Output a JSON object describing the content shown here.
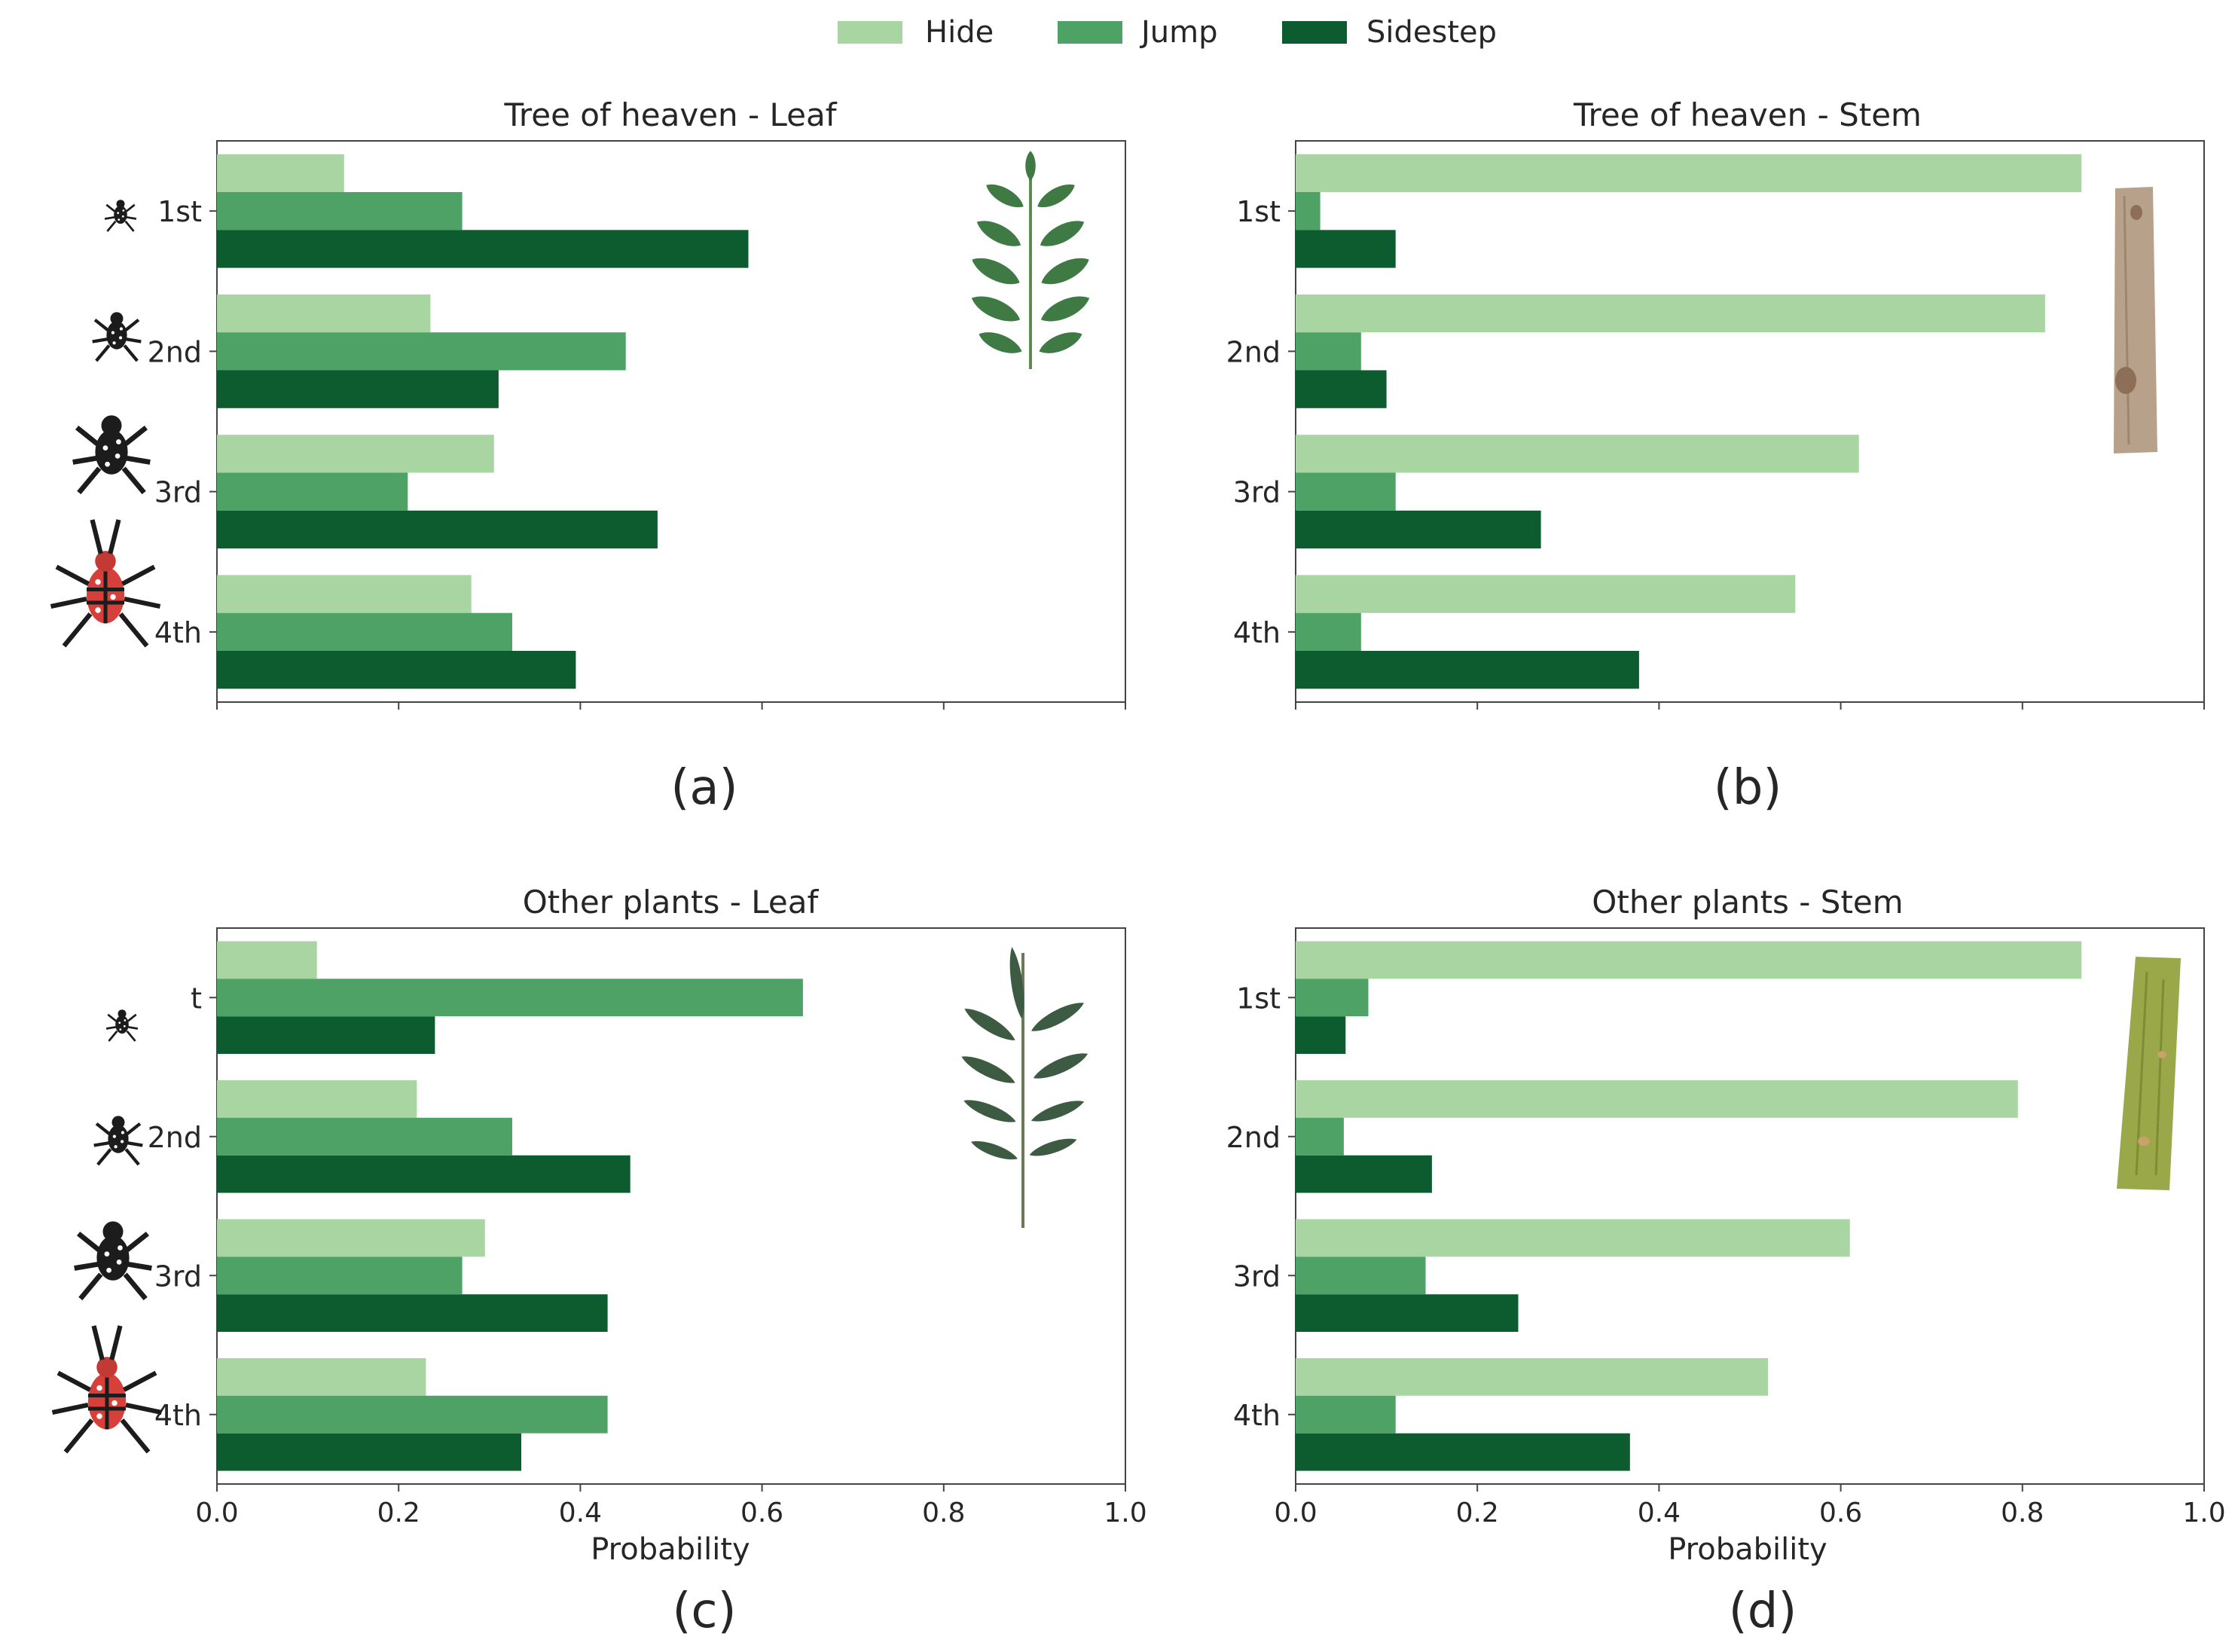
{
  "legend": {
    "items": [
      {
        "label": "Hide",
        "color": "#a8d5a2"
      },
      {
        "label": "Jump",
        "color": "#4ea265"
      },
      {
        "label": "Sidestep",
        "color": "#0d5c2f"
      }
    ]
  },
  "chart_data": [
    {
      "type": "bar",
      "orientation": "horizontal",
      "panel": "(a)",
      "title": "Tree of heaven - Leaf",
      "categories": [
        "1st",
        "2nd",
        "3rd",
        "4th"
      ],
      "series": [
        {
          "name": "Hide",
          "values": [
            0.14,
            0.235,
            0.305,
            0.28
          ]
        },
        {
          "name": "Jump",
          "values": [
            0.27,
            0.45,
            0.21,
            0.325
          ]
        },
        {
          "name": "Sidestep",
          "values": [
            0.585,
            0.31,
            0.485,
            0.395
          ]
        }
      ],
      "xlabel": "",
      "ylabel": "",
      "xlim": [
        0,
        1.0
      ],
      "xticks": [
        "0.0",
        "0.2",
        "0.4",
        "0.6",
        "0.8",
        "1.0"
      ],
      "show_tick_labels": false,
      "caption": "(a)",
      "inset_icon": "tree-of-heaven-leaf"
    },
    {
      "type": "bar",
      "orientation": "horizontal",
      "panel": "(b)",
      "title": "Tree of heaven - Stem",
      "categories": [
        "1st",
        "2nd",
        "3rd",
        "4th"
      ],
      "series": [
        {
          "name": "Hide",
          "values": [
            0.865,
            0.825,
            0.62,
            0.55
          ]
        },
        {
          "name": "Jump",
          "values": [
            0.027,
            0.072,
            0.11,
            0.072
          ]
        },
        {
          "name": "Sidestep",
          "values": [
            0.11,
            0.1,
            0.27,
            0.378
          ]
        }
      ],
      "xlabel": "",
      "ylabel": "",
      "xlim": [
        0,
        1.0
      ],
      "xticks": [
        "0.0",
        "0.2",
        "0.4",
        "0.6",
        "0.8",
        "1.0"
      ],
      "show_tick_labels": false,
      "caption": "(b)",
      "inset_icon": "tree-of-heaven-stem"
    },
    {
      "type": "bar",
      "orientation": "horizontal",
      "panel": "(c)",
      "title": "Other plants - Leaf",
      "categories": [
        "t",
        "2nd",
        "3rd",
        "4th"
      ],
      "series": [
        {
          "name": "Hide",
          "values": [
            0.11,
            0.22,
            0.295,
            0.23
          ]
        },
        {
          "name": "Jump",
          "values": [
            0.645,
            0.325,
            0.27,
            0.43
          ]
        },
        {
          "name": "Sidestep",
          "values": [
            0.24,
            0.455,
            0.43,
            0.335
          ]
        }
      ],
      "xlabel": "Probability",
      "ylabel": "",
      "xlim": [
        0,
        1.0
      ],
      "xticks": [
        "0.0",
        "0.2",
        "0.4",
        "0.6",
        "0.8",
        "1.0"
      ],
      "show_tick_labels": true,
      "caption": "(c)",
      "inset_icon": "other-plant-leaf"
    },
    {
      "type": "bar",
      "orientation": "horizontal",
      "panel": "(d)",
      "title": "Other plants - Stem",
      "categories": [
        "1st",
        "2nd",
        "3rd",
        "4th"
      ],
      "series": [
        {
          "name": "Hide",
          "values": [
            0.865,
            0.795,
            0.61,
            0.52
          ]
        },
        {
          "name": "Jump",
          "values": [
            0.08,
            0.053,
            0.143,
            0.11
          ]
        },
        {
          "name": "Sidestep",
          "values": [
            0.055,
            0.15,
            0.245,
            0.368
          ]
        }
      ],
      "xlabel": "Probability",
      "ylabel": "",
      "xlim": [
        0,
        1.0
      ],
      "xticks": [
        "0.0",
        "0.2",
        "0.4",
        "0.6",
        "0.8",
        "1.0"
      ],
      "show_tick_labels": true,
      "caption": "(d)",
      "inset_icon": "other-plant-stem"
    }
  ]
}
